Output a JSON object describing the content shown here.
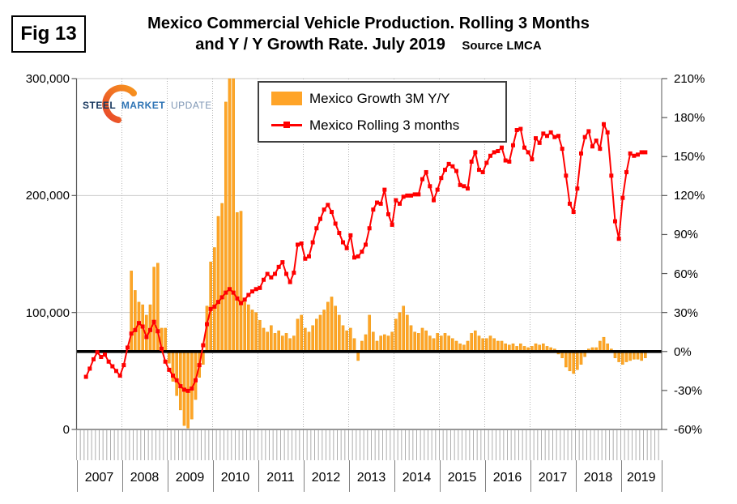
{
  "fig_label": "Fig 13",
  "title": {
    "line1": "Mexico Commercial Vehicle Production. Rolling 3 Months",
    "line2": "and Y / Y Growth Rate. July 2019",
    "source": "Source LMCA"
  },
  "logo": {
    "word1": "STEEL",
    "word2": "MARKET",
    "word3": "UPDATE"
  },
  "legend": {
    "items": [
      {
        "label": "Mexico Growth 3M Y/Y",
        "marker": "bar"
      },
      {
        "label": "Mexico Rolling 3 months",
        "marker": "line"
      }
    ]
  },
  "colors": {
    "bar": "#FFA428",
    "bar_border": "#E69500",
    "line": "#FF0000",
    "grid": "#C9C9C9",
    "year_grid": "#B3B3B3",
    "axis_dark": "#595959",
    "axis_light": "#A6A6A6",
    "tick_comb": "#ADADAD",
    "zero_line": "#000000",
    "logo_orange1": "#E8472B",
    "logo_orange2": "#F7941E",
    "logo_navy": "#17375E",
    "logo_blue": "#2E74B5",
    "logo_gray": "#7F97B5"
  },
  "chart_data": {
    "type": "bar+line dual-axis monthly time series",
    "x_start": "2007-01",
    "x_end": "2019-07",
    "years": [
      "2007",
      "2008",
      "2009",
      "2010",
      "2011",
      "2012",
      "2013",
      "2014",
      "2015",
      "2016",
      "2017",
      "2018",
      "2019"
    ],
    "left_axis": {
      "series": "Mexico Rolling 3 months",
      "unit": "vehicles",
      "min": 0,
      "max": 300000,
      "tick_step": 100000,
      "tick_labels": [
        "300,000",
        "200,000",
        "100,000",
        "0"
      ]
    },
    "right_axis": {
      "series": "Mexico Growth 3M Y/Y",
      "unit": "percent",
      "min": -60,
      "max": 210,
      "tick_step": 30,
      "tick_labels": [
        "210%",
        "180%",
        "150%",
        "120%",
        "90%",
        "60%",
        "30%",
        "0%",
        "-30%",
        "-60%"
      ]
    },
    "grid": {
      "horizontal": "solid at 100,000 intervals",
      "vertical": "dotted at year boundaries"
    },
    "legend_position": "top-center inside plot",
    "series": [
      {
        "name": "Mexico Growth 3M Y/Y",
        "type": "bar",
        "axis": "right",
        "first_point": "2008-03",
        "values_pct": [
          62,
          47,
          38,
          36,
          28,
          36,
          65,
          68,
          18,
          18,
          -9,
          -23,
          -34,
          -45,
          -57,
          -59,
          -52,
          -37,
          -20,
          -10,
          35,
          69,
          80,
          104,
          114,
          192,
          265,
          270,
          107,
          108,
          38,
          36,
          32,
          30,
          24,
          18,
          15,
          20,
          14,
          16,
          12,
          14,
          10,
          12,
          25,
          28,
          18,
          15,
          20,
          25,
          28,
          32,
          38,
          42,
          35,
          28,
          20,
          16,
          18,
          10,
          -7,
          8,
          13,
          28,
          15,
          8,
          12,
          13,
          12,
          15,
          25,
          30,
          35,
          28,
          20,
          15,
          14,
          18,
          16,
          12,
          10,
          14,
          12,
          14,
          12,
          10,
          8,
          6,
          5,
          8,
          14,
          16,
          12,
          10,
          10,
          12,
          10,
          8,
          8,
          6,
          5,
          6,
          4,
          6,
          4,
          3,
          4,
          6,
          5,
          6,
          4,
          3,
          2,
          -2,
          -5,
          -12,
          -15,
          -17,
          -14,
          -10,
          -4,
          2,
          3,
          3,
          8,
          11,
          6,
          2,
          -5,
          -8,
          -10,
          -8,
          -7,
          -6,
          -6,
          -7,
          -5
        ]
      },
      {
        "name": "Mexico Rolling 3 months",
        "type": "line",
        "axis": "left",
        "first_point": "2007-03",
        "values_units": [
          45000,
          52000,
          60000,
          66000,
          62000,
          64000,
          58000,
          54000,
          50000,
          46000,
          55000,
          70000,
          82000,
          85000,
          91000,
          88000,
          79000,
          85000,
          92000,
          84000,
          69000,
          58000,
          51000,
          46000,
          42000,
          37000,
          34000,
          33000,
          35000,
          42000,
          55000,
          72000,
          90000,
          103000,
          105000,
          109000,
          113000,
          117000,
          120000,
          117000,
          112000,
          108000,
          111000,
          115000,
          118000,
          120000,
          121000,
          128000,
          133000,
          130000,
          133000,
          139000,
          143000,
          133000,
          126000,
          134000,
          158000,
          159000,
          146000,
          148000,
          160000,
          172000,
          180000,
          188000,
          192000,
          186000,
          176000,
          168000,
          160000,
          155000,
          166000,
          147000,
          148000,
          152000,
          158000,
          172000,
          188000,
          194000,
          193000,
          205000,
          184000,
          175000,
          196000,
          193000,
          199000,
          200000,
          200000,
          201000,
          201000,
          214000,
          220000,
          208000,
          196000,
          205000,
          215000,
          222000,
          227000,
          225000,
          221000,
          209000,
          208000,
          206000,
          229000,
          237000,
          222000,
          220000,
          228000,
          234000,
          237000,
          238000,
          241000,
          230000,
          229000,
          243000,
          256000,
          257000,
          241000,
          237000,
          231000,
          249000,
          245000,
          253000,
          251000,
          254000,
          250000,
          251000,
          240000,
          217000,
          193000,
          186000,
          206000,
          236000,
          250000,
          255000,
          242000,
          247000,
          240000,
          261000,
          254000,
          217000,
          178000,
          163000,
          198000,
          220000,
          236000,
          234000,
          235000,
          237000,
          237000
        ]
      }
    ],
    "notes": "Bars for 2010-05 and 2010-06 exceed the 210% right-axis maximum and are clipped at the plot top."
  }
}
